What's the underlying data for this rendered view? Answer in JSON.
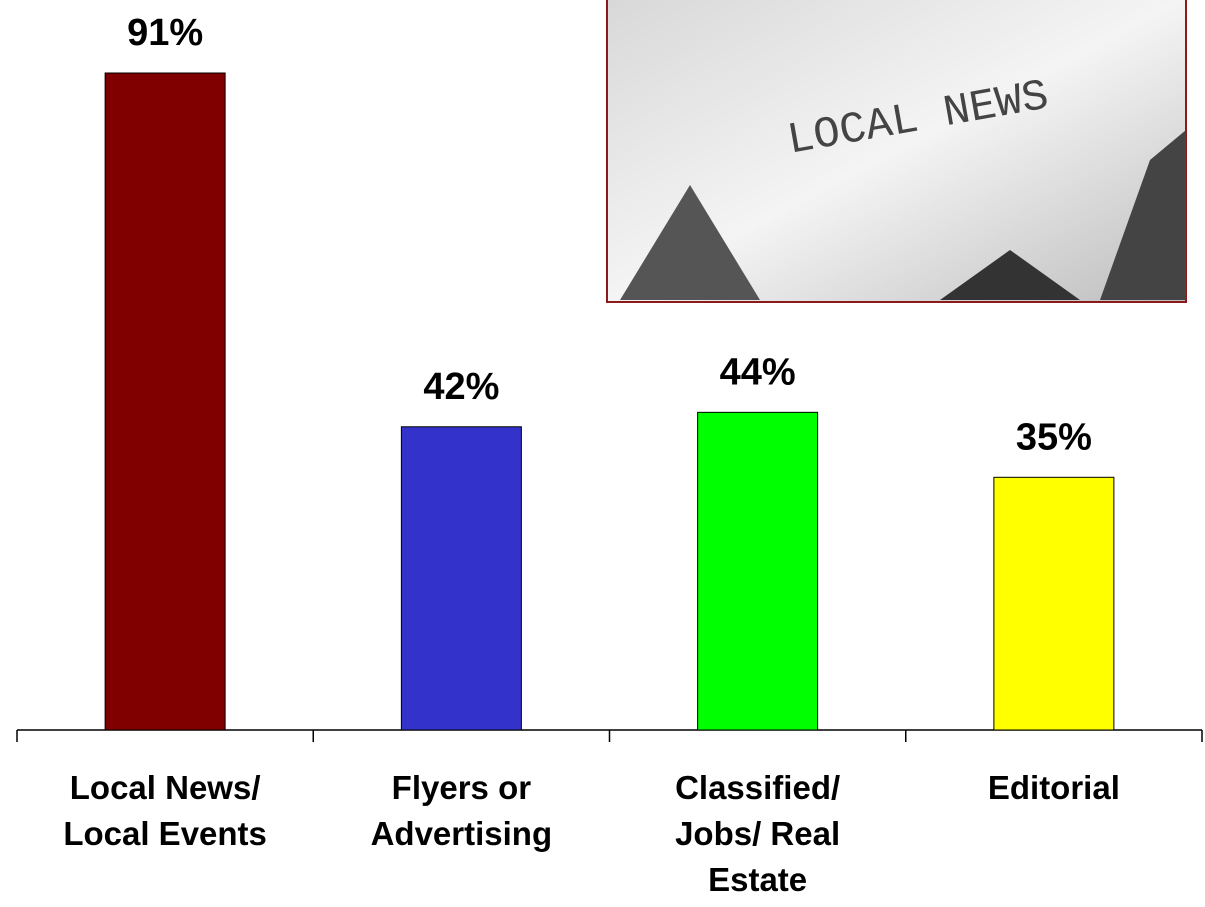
{
  "chart_data": {
    "type": "bar",
    "categories": [
      "Local News/ Local Events",
      "Flyers or Advertising",
      "Classified/ Jobs/ Real Estate",
      "Editorial"
    ],
    "values": [
      91,
      42,
      44,
      35
    ],
    "value_labels": [
      "91%",
      "42%",
      "44%",
      "35%"
    ],
    "colors": [
      "#800000",
      "#3333cc",
      "#00ff00",
      "#ffff00"
    ]
  },
  "image_text": "LOCAL NEWS"
}
